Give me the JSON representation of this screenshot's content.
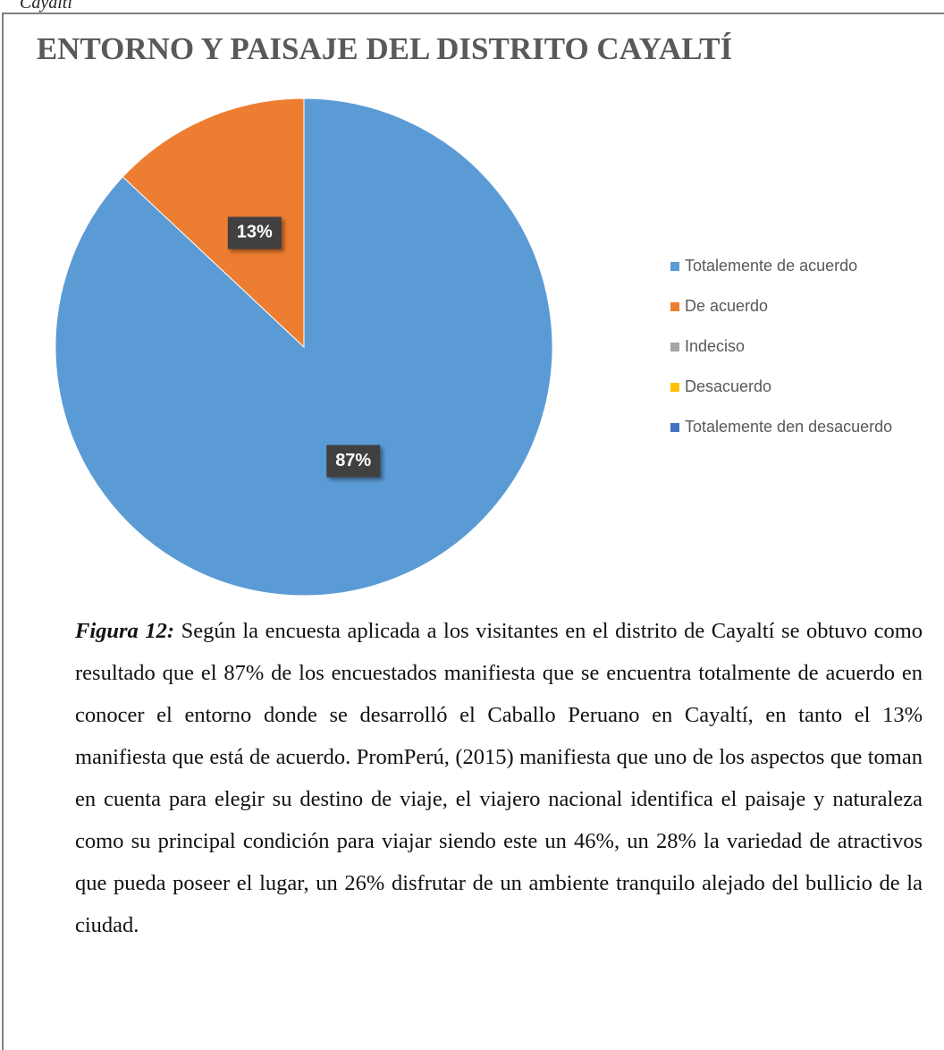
{
  "header": "Cayaltí",
  "chart_data": {
    "type": "pie",
    "title": "ENTORNO Y PAISAJE DEL DISTRITO CAYALTÍ",
    "categories": [
      "Totalemente de acuerdo",
      "De acuerdo",
      "Indeciso",
      "Desacuerdo",
      "Totalemente den desacuerdo"
    ],
    "values": [
      87,
      13,
      0,
      0,
      0
    ],
    "value_labels": [
      "87%",
      "13%",
      null,
      null,
      null
    ],
    "colors": [
      "#5b9bd5",
      "#ed7d31",
      "#a5a5a5",
      "#ffc000",
      "#4472c4"
    ],
    "legend": "right"
  },
  "caption": {
    "label": "Figura 12:",
    "text": "Según la encuesta aplicada a los visitantes en el distrito de Cayaltí se obtuvo como resultado que el 87% de los encuestados manifiesta que se encuentra totalmente de acuerdo en conocer el entorno donde se desarrolló el Caballo Peruano en Cayaltí, en tanto el 13% manifiesta que está de acuerdo. PromPerú, (2015) manifiesta que uno de los aspectos que toman en cuenta para elegir su destino de viaje, el viajero nacional identifica el paisaje y naturaleza como su principal condición para viajar siendo este un 46%, un 28% la variedad de atractivos que pueda poseer el lugar, un 26% disfrutar de un ambiente tranquilo alejado del bullicio de la ciudad."
  }
}
